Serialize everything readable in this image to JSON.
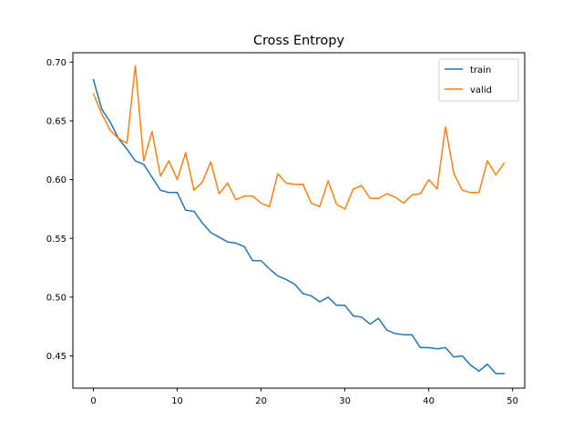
{
  "chart_data": {
    "type": "line",
    "title": "Cross Entropy",
    "xlabel": "",
    "ylabel": "",
    "xlim": [
      -2.45,
      51.45
    ],
    "ylim": [
      0.4225,
      0.708
    ],
    "xticks": [
      0,
      10,
      20,
      30,
      40,
      50
    ],
    "yticks": [
      0.45,
      0.5,
      0.55,
      0.6,
      0.65,
      0.7
    ],
    "xtick_labels": [
      "0",
      "10",
      "20",
      "30",
      "40",
      "50"
    ],
    "ytick_labels": [
      "0.45",
      "0.50",
      "0.55",
      "0.60",
      "0.65",
      "0.70"
    ],
    "grid": false,
    "legend": {
      "placement": "top-right",
      "entries": [
        {
          "label": "train",
          "color": "#1f77b4"
        },
        {
          "label": "valid",
          "color": "#ff7f0e"
        }
      ]
    },
    "x": [
      0,
      1,
      2,
      3,
      4,
      5,
      6,
      7,
      8,
      9,
      10,
      11,
      12,
      13,
      14,
      15,
      16,
      17,
      18,
      19,
      20,
      21,
      22,
      23,
      24,
      25,
      26,
      27,
      28,
      29,
      30,
      31,
      32,
      33,
      34,
      35,
      36,
      37,
      38,
      39,
      40,
      41,
      42,
      43,
      44,
      45,
      46,
      47,
      48,
      49
    ],
    "series": [
      {
        "name": "train",
        "color": "#1f77b4",
        "values": [
          0.685,
          0.66,
          0.649,
          0.635,
          0.626,
          0.616,
          0.613,
          0.602,
          0.591,
          0.589,
          0.589,
          0.574,
          0.573,
          0.563,
          0.555,
          0.551,
          0.547,
          0.546,
          0.543,
          0.531,
          0.531,
          0.524,
          0.518,
          0.515,
          0.511,
          0.503,
          0.501,
          0.496,
          0.5,
          0.493,
          0.493,
          0.484,
          0.483,
          0.477,
          0.482,
          0.472,
          0.469,
          0.468,
          0.468,
          0.457,
          0.457,
          0.456,
          0.457,
          0.449,
          0.45,
          0.442,
          0.437,
          0.443,
          0.435,
          0.435
        ]
      },
      {
        "name": "valid",
        "color": "#ff7f0e",
        "values": [
          0.673,
          0.656,
          0.642,
          0.635,
          0.631,
          0.697,
          0.616,
          0.641,
          0.603,
          0.616,
          0.6,
          0.623,
          0.591,
          0.598,
          0.615,
          0.588,
          0.597,
          0.583,
          0.586,
          0.586,
          0.58,
          0.577,
          0.605,
          0.597,
          0.596,
          0.596,
          0.58,
          0.577,
          0.599,
          0.579,
          0.575,
          0.592,
          0.595,
          0.584,
          0.584,
          0.588,
          0.585,
          0.58,
          0.587,
          0.588,
          0.6,
          0.592,
          0.645,
          0.605,
          0.591,
          0.589,
          0.589,
          0.616,
          0.604,
          0.614
        ]
      }
    ]
  }
}
